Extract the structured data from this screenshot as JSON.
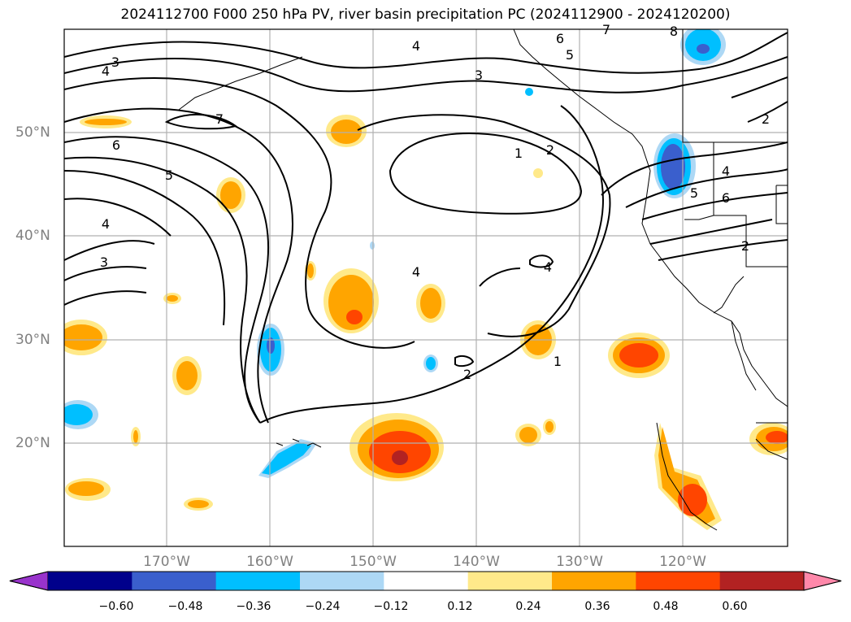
{
  "title": "2024112700 F000 250 hPa PV, river basin precipitation PC (2024112900 - 2024120200)",
  "map": {
    "lat_labels": [
      "50°N",
      "40°N",
      "30°N",
      "20°N"
    ],
    "lon_labels": [
      "170°W",
      "160°W",
      "150°W",
      "140°W",
      "130°W",
      "120°W"
    ],
    "pv_contour_labels": [
      "3",
      "4",
      "6",
      "5",
      "7",
      "4",
      "3",
      "4",
      "3",
      "6",
      "5",
      "1",
      "2",
      "4",
      "5",
      "6",
      "2",
      "2",
      "4",
      "4",
      "2",
      "1",
      "8",
      "7"
    ]
  },
  "colorbar": {
    "ticks": [
      "−0.60",
      "−0.48",
      "−0.36",
      "−0.24",
      "−0.12",
      "0.12",
      "0.24",
      "0.36",
      "0.48",
      "0.60"
    ],
    "colors": [
      "#9933cc",
      "#00008b",
      "#3a5fcd",
      "#00bfff",
      "#add8f5",
      "#ffffff",
      "#ffe98a",
      "#ffa500",
      "#ff4500",
      "#b22222",
      "#ff88aa"
    ]
  }
}
